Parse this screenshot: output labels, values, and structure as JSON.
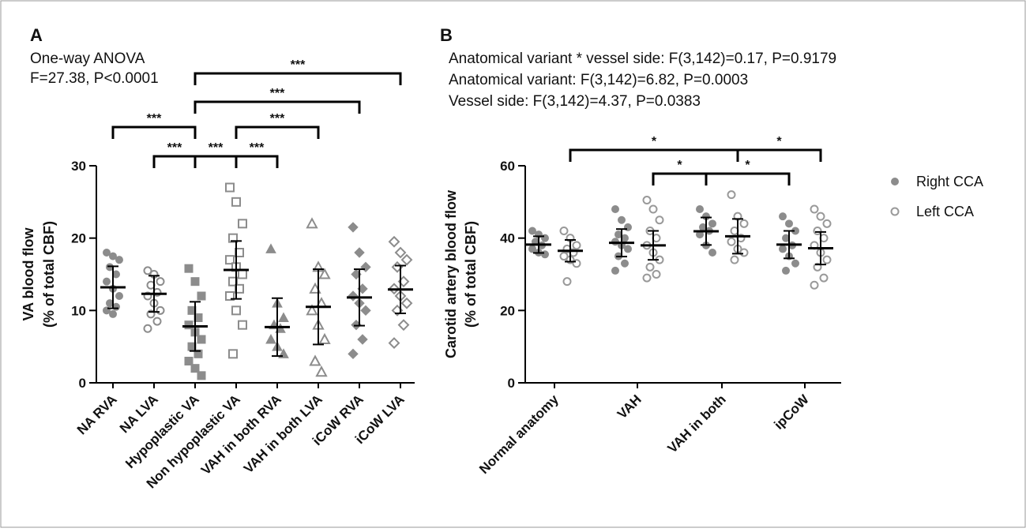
{
  "chart_data": [
    {
      "type": "dot",
      "panel": "A",
      "annotations": [
        "One-way  ANOVA",
        "F=27.38, P<0.0001"
      ],
      "y_label": [
        "VA blood flow",
        "(% of total CBF)"
      ],
      "ylim": [
        0,
        30
      ],
      "yticks": [
        0,
        10,
        20,
        30
      ],
      "color": "#8c8c8c",
      "categories": [
        "NA RVA",
        "NA LVA",
        "Hypoplastic VA",
        "Non hypoplastic VA",
        "VAH in both RVA",
        "VAH in both LVA",
        "iCoW RVA",
        "iCoW LVA"
      ],
      "markers": [
        "circle",
        "circle",
        "square",
        "square",
        "triangle",
        "triangle",
        "diamond",
        "diamond"
      ],
      "filled": [
        true,
        false,
        true,
        false,
        true,
        false,
        true,
        false
      ],
      "points": [
        [
          18,
          17.5,
          17,
          16,
          15,
          14,
          13,
          12,
          11,
          10.5,
          10,
          9.5
        ],
        [
          15.5,
          15,
          14,
          13.5,
          12.5,
          12,
          11,
          10,
          9.5,
          8.5,
          7.5
        ],
        [
          15.8,
          14,
          12,
          10,
          9,
          8,
          7,
          6,
          5,
          4,
          3,
          2,
          1
        ],
        [
          27,
          25,
          22,
          20,
          18,
          17,
          16,
          15,
          14,
          13,
          12,
          10,
          8,
          4
        ],
        [
          18.5,
          11,
          9,
          8,
          7.5,
          6,
          5,
          4
        ],
        [
          22,
          16,
          15,
          13,
          11,
          10,
          8,
          6,
          3,
          1.5
        ],
        [
          21.5,
          18,
          16,
          15,
          13,
          12,
          11,
          10,
          8,
          6,
          4
        ],
        [
          19.5,
          18,
          17,
          16,
          14,
          13,
          12,
          11,
          10,
          8,
          5.5
        ]
      ],
      "means": [
        13.2,
        12.3,
        7.8,
        15.6,
        7.7,
        10.5,
        11.8,
        12.9
      ],
      "sds": [
        2.9,
        2.5,
        3.4,
        4.0,
        4.0,
        5.2,
        3.9,
        3.3
      ],
      "comparisons": [
        {
          "from": 0,
          "to": 2,
          "label": "***"
        },
        {
          "from": 1,
          "to": 2,
          "label": "***"
        },
        {
          "from": 2,
          "to": 3,
          "label": "***"
        },
        {
          "from": 3,
          "to": 4,
          "label": "***"
        },
        {
          "from": 3,
          "to": 5,
          "label": "***"
        },
        {
          "from": 2,
          "to": 6,
          "label": "***"
        },
        {
          "from": 2,
          "to": 7,
          "label": "***"
        }
      ]
    },
    {
      "type": "grouped-dot",
      "panel": "B",
      "annotations": [
        "Anatomical variant * vessel side:  F(3,142)=0.17,  P=0.9179",
        "Anatomical variant: F(3,142)=6.82, P=0.0003",
        "Vessel side:  F(3,142)=4.37, P=0.0383"
      ],
      "y_label": [
        "Carotid artery blood flow",
        "(% of total CBF)"
      ],
      "ylim": [
        0,
        60
      ],
      "yticks": [
        0,
        20,
        40,
        60
      ],
      "categories": [
        "Normal anatomy",
        "VAH",
        "VAH in both",
        "ipCoW"
      ],
      "series": [
        {
          "name": "Right CCA",
          "color": "#8c8c8c",
          "filled": true,
          "points": [
            [
              42,
              41,
              40,
              39,
              38,
              37,
              36,
              35.5
            ],
            [
              48,
              45,
              43,
              41,
              40,
              39,
              38,
              37,
              35,
              33,
              31
            ],
            [
              48,
              46,
              44,
              43,
              42,
              41,
              38,
              36
            ],
            [
              46,
              44,
              42,
              40,
              38,
              37,
              35,
              33,
              31
            ]
          ],
          "means": [
            38.2,
            38.7,
            41.9,
            38.2
          ],
          "sds": [
            2.3,
            3.8,
            3.8,
            3.8
          ]
        },
        {
          "name": "Left CCA",
          "color": "#999999",
          "filled": false,
          "points": [
            [
              42,
              40,
              38,
              37,
              36,
              35,
              34,
              33,
              28
            ],
            [
              50.5,
              48,
              45,
              42,
              40,
              38,
              36,
              34,
              32,
              30,
              29
            ],
            [
              52,
              46,
              44,
              42,
              40,
              39,
              37,
              36,
              34
            ],
            [
              48,
              46,
              44,
              42,
              40,
              38,
              36,
              34,
              32,
              29,
              27
            ]
          ],
          "means": [
            36.5,
            38.0,
            40.5,
            37.2
          ],
          "sds": [
            3.0,
            4.0,
            4.8,
            4.5
          ]
        }
      ],
      "comparisons": [
        {
          "from": [
            0,
            1
          ],
          "to": [
            2,
            1
          ],
          "label": "*"
        },
        {
          "from": [
            1,
            1
          ],
          "to": [
            2,
            0
          ],
          "label": "*"
        },
        {
          "from": [
            2,
            1
          ],
          "to": [
            3,
            1
          ],
          "label": "*"
        },
        {
          "from": [
            2,
            0
          ],
          "to": [
            3,
            0
          ],
          "label": "*"
        }
      ]
    }
  ]
}
